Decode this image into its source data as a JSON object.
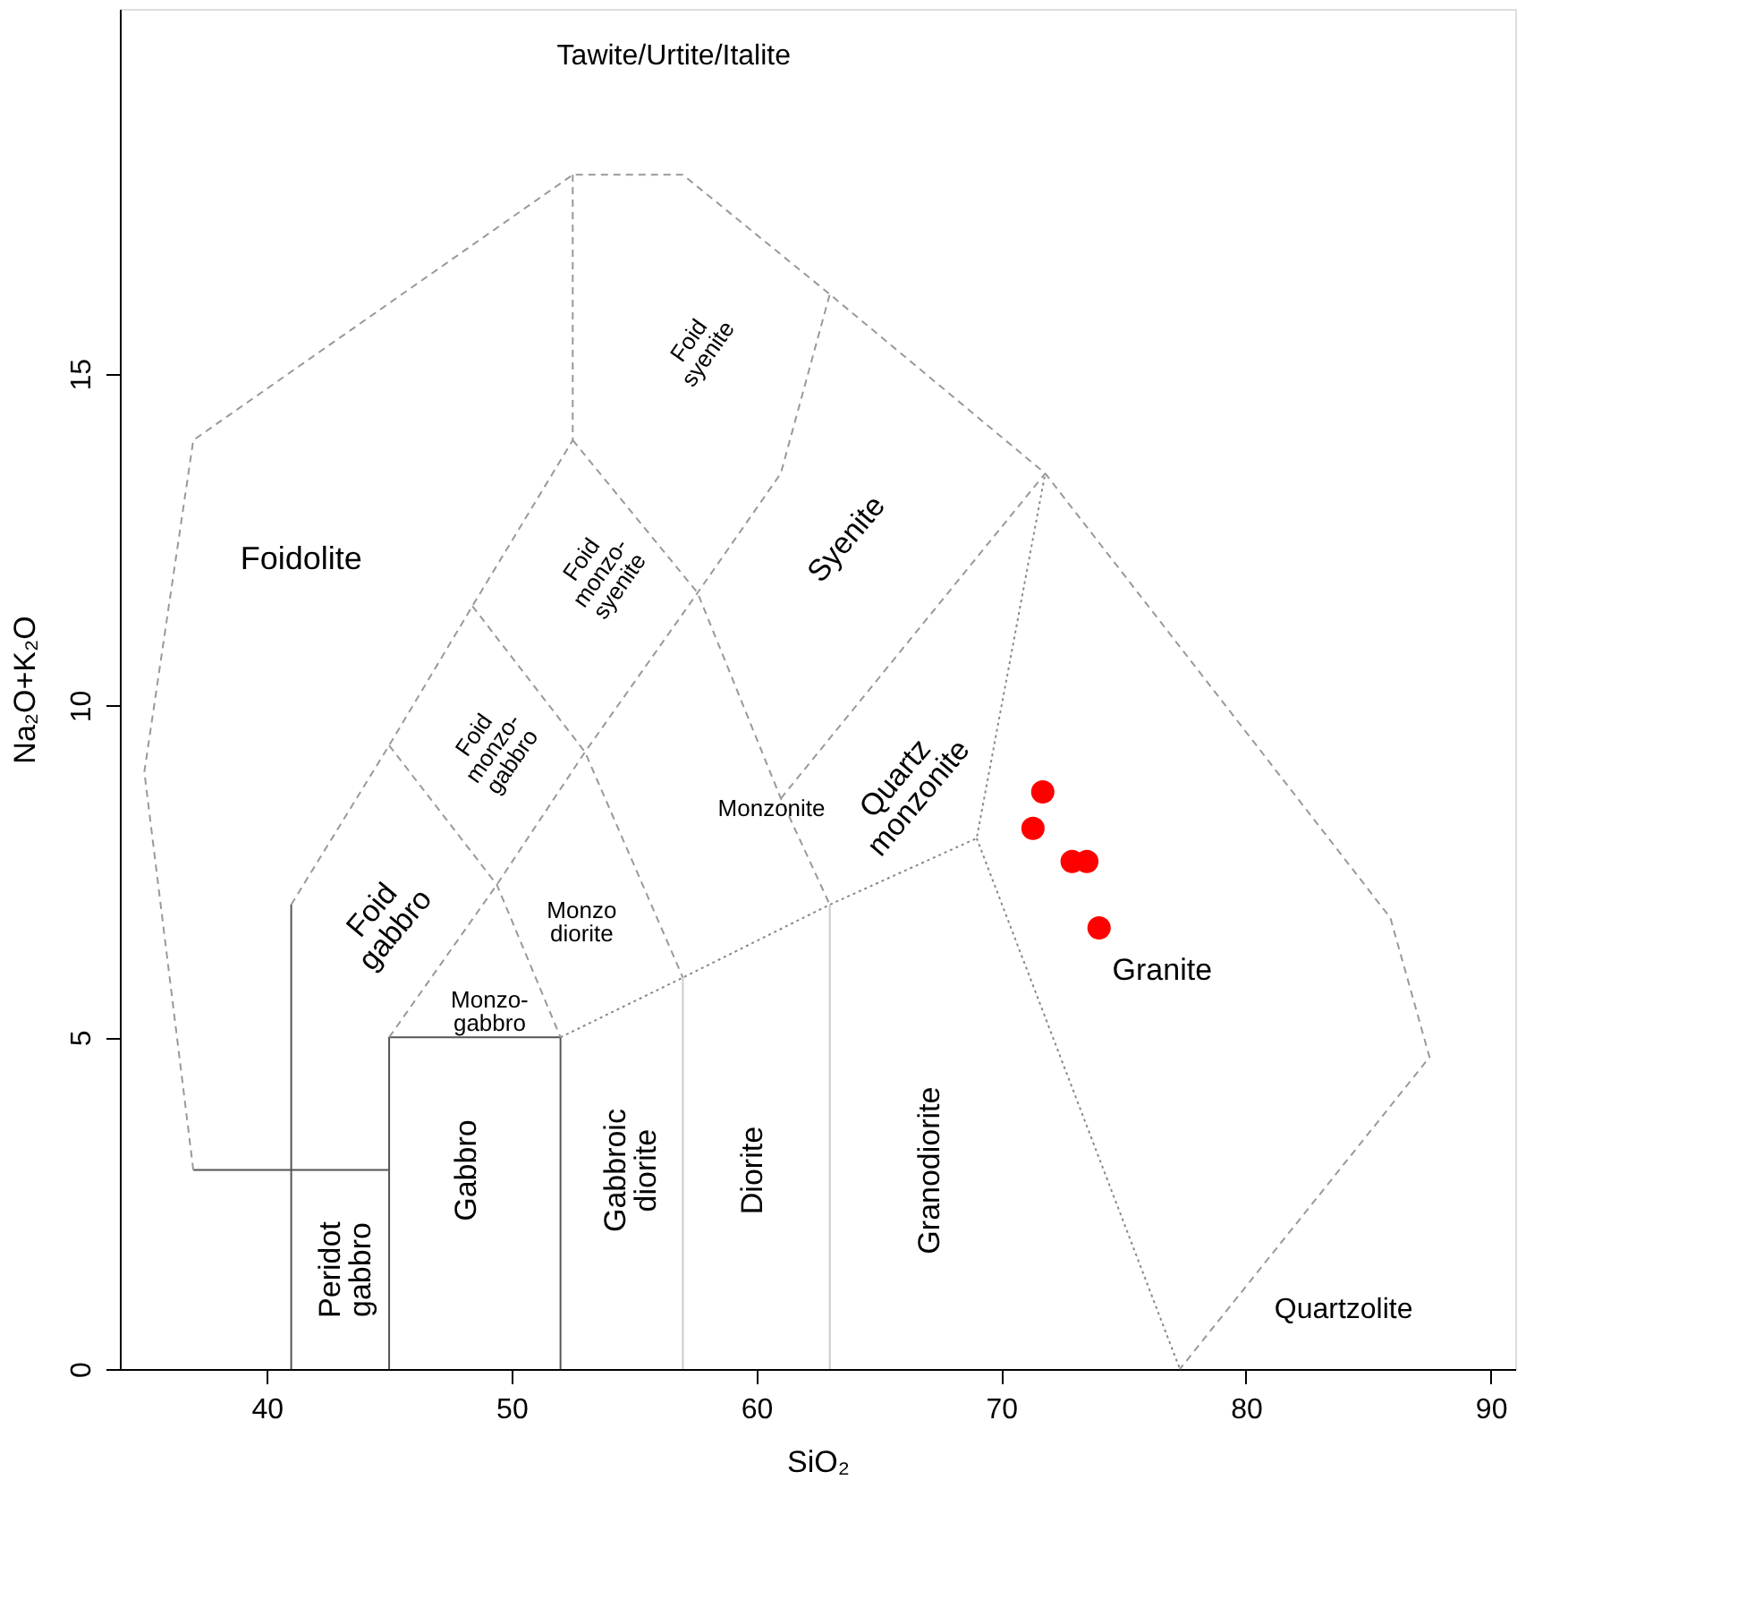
{
  "chart_data": {
    "type": "scatter",
    "xlabel": "SiO₂",
    "ylabel": "Na₂O+K₂O",
    "xlim": [
      34,
      91
    ],
    "ylim": [
      0,
      20.5
    ],
    "xticks": [
      40,
      50,
      60,
      70,
      80,
      90
    ],
    "yticks": [
      0,
      5,
      10,
      15
    ],
    "grid": false,
    "series": [
      {
        "type": "line",
        "line_style": "solid",
        "color": "#555555",
        "x": [
          41,
          41
        ],
        "values": [
          0,
          7
        ]
      },
      {
        "type": "line",
        "line_style": "solid",
        "color": "#555555",
        "x": [
          37,
          45
        ],
        "values": [
          3,
          3
        ]
      },
      {
        "type": "line",
        "line_style": "solid",
        "color": "#555555",
        "x": [
          45,
          45,
          52,
          52
        ],
        "values": [
          0,
          5,
          5,
          0
        ]
      },
      {
        "type": "line",
        "line_style": "solid",
        "color": "#cccccc",
        "x": [
          57,
          57
        ],
        "values": [
          0,
          5.9
        ]
      },
      {
        "type": "line",
        "line_style": "solid",
        "color": "#cccccc",
        "x": [
          63,
          63
        ],
        "values": [
          0,
          7
        ]
      },
      {
        "type": "line",
        "line_style": "dotted",
        "color": "#888888",
        "x": [
          52,
          57,
          63,
          69,
          71.8
        ],
        "values": [
          5,
          5.9,
          7,
          8,
          13.5
        ]
      },
      {
        "type": "line",
        "line_style": "dotted",
        "color": "#888888",
        "x": [
          69,
          77.3
        ],
        "values": [
          8,
          0
        ]
      },
      {
        "type": "line",
        "line_style": "dashed",
        "color": "#999999",
        "x": [
          37,
          35,
          37,
          52.5,
          57,
          63,
          71.8,
          85.9,
          87.5,
          77.3
        ],
        "values": [
          3,
          9,
          14,
          18,
          18,
          16.2,
          13.5,
          6.8,
          4.7,
          0
        ]
      },
      {
        "type": "line",
        "line_style": "dashed",
        "color": "#999999",
        "x": [
          41,
          45,
          48.4,
          52.5,
          52.5
        ],
        "values": [
          7,
          9.4,
          11.5,
          14,
          18
        ]
      },
      {
        "type": "line",
        "line_style": "dashed",
        "color": "#999999",
        "x": [
          45,
          49.4,
          53,
          57.6,
          61,
          63
        ],
        "values": [
          5,
          7.3,
          9.3,
          11.7,
          13.5,
          16.2
        ]
      },
      {
        "type": "line",
        "line_style": "dashed",
        "color": "#999999",
        "x": [
          45,
          49.4,
          52
        ],
        "values": [
          9.4,
          7.3,
          5
        ]
      },
      {
        "type": "line",
        "line_style": "dashed",
        "color": "#999999",
        "x": [
          48.4,
          53,
          57
        ],
        "values": [
          11.5,
          9.3,
          5.9
        ]
      },
      {
        "type": "line",
        "line_style": "dashed",
        "color": "#999999",
        "x": [
          52.5,
          57.6,
          61,
          63
        ],
        "values": [
          14,
          11.7,
          8.6,
          7
        ]
      },
      {
        "type": "line",
        "line_style": "dashed",
        "color": "#999999",
        "x": [
          61,
          71.8
        ],
        "values": [
          8.6,
          13.5
        ]
      },
      {
        "marker": "circle",
        "color": "#ff0000",
        "x": [
          71.7,
          71.3,
          72.9,
          73.5,
          74.0
        ],
        "values": [
          8.7,
          8.15,
          7.65,
          7.65,
          6.65
        ]
      }
    ],
    "annotations": [
      "Tawite/Urtite/Italite",
      "Foidolite",
      "Foid\nsyenite",
      "Foid\nmonzo-\nsyenite",
      "Syenite",
      "Foid\nmonzo-\ngabbro",
      "Quartz\nmonzonite",
      "Monzonite",
      "Foid\ngabbro",
      "Monzo\ndiorite",
      "Monzo-\ngabbro",
      "Gabbro",
      "Peridot\ngabbro",
      "Gabbroic\ndiorite",
      "Diorite",
      "Granodiorite",
      "Granite",
      "Quartzolite"
    ]
  }
}
